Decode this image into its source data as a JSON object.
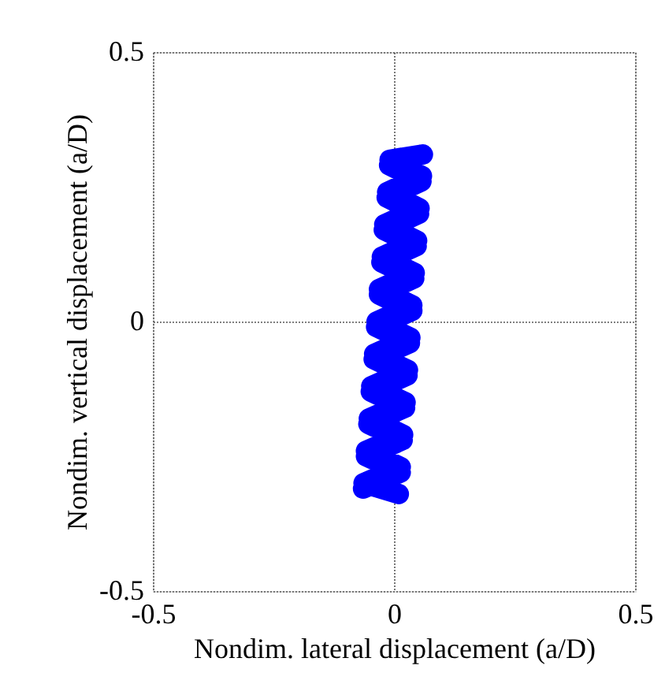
{
  "chart_data": {
    "type": "line",
    "xlabel": "Nondim. lateral displacement (a/D)",
    "ylabel": "Nondim. vertical displacement (a/D)",
    "xlim": [
      -0.5,
      0.5
    ],
    "ylim": [
      -0.5,
      0.5
    ],
    "xticks": [
      -0.5,
      0,
      0.5
    ],
    "yticks": [
      -0.5,
      0,
      0.5
    ],
    "grid": true,
    "line_style": "solid",
    "series": [
      {
        "color": "#0000ff",
        "x": [
          -0.064,
          0.014,
          -0.058,
          0.018,
          -0.053,
          0.023,
          -0.048,
          0.028,
          -0.042,
          0.033,
          -0.037,
          0.038,
          -0.031,
          0.042,
          -0.026,
          0.047,
          -0.021,
          0.052,
          -0.015,
          0.057,
          -0.01,
          0.06,
          -0.009,
          0.058,
          -0.014,
          0.053,
          -0.02,
          0.048,
          -0.025,
          0.043,
          -0.031,
          0.038,
          -0.036,
          0.034,
          -0.041,
          0.029,
          -0.047,
          0.024,
          -0.052,
          0.019,
          -0.058,
          0.014,
          -0.063,
          0.01
        ],
        "values": [
          -0.31,
          -0.28,
          -0.25,
          -0.22,
          -0.19,
          -0.16,
          -0.13,
          -0.1,
          -0.07,
          -0.04,
          -0.01,
          0.02,
          0.05,
          0.08,
          0.11,
          0.14,
          0.17,
          0.2,
          0.23,
          0.26,
          0.29,
          0.31,
          0.3,
          0.27,
          0.24,
          0.21,
          0.18,
          0.15,
          0.12,
          0.09,
          0.06,
          0.03,
          0.0,
          -0.03,
          -0.06,
          -0.09,
          -0.12,
          -0.15,
          -0.18,
          -0.21,
          -0.24,
          -0.27,
          -0.3,
          -0.32
        ]
      }
    ]
  }
}
